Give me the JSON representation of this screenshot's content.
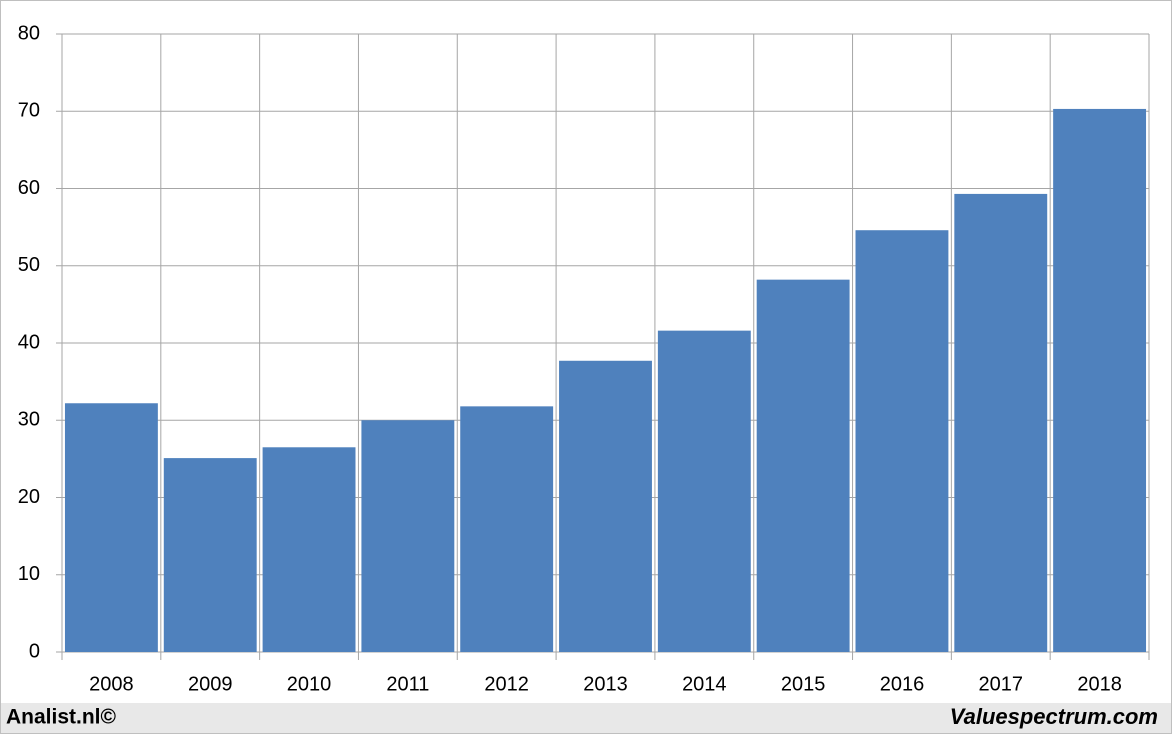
{
  "chart_data": {
    "type": "bar",
    "categories": [
      "2008",
      "2009",
      "2010",
      "2011",
      "2012",
      "2013",
      "2014",
      "2015",
      "2016",
      "2017",
      "2018"
    ],
    "values": [
      32.2,
      25.1,
      26.5,
      30.0,
      31.8,
      37.7,
      41.6,
      48.2,
      54.6,
      59.3,
      70.3
    ],
    "color": "#4f81bd",
    "ylim": [
      0,
      80
    ],
    "yticks": [
      0,
      10,
      20,
      30,
      40,
      50,
      60,
      70,
      80
    ],
    "grid": true,
    "source_left": "Analist.nl©",
    "source_right": "Valuespectrum.com"
  }
}
